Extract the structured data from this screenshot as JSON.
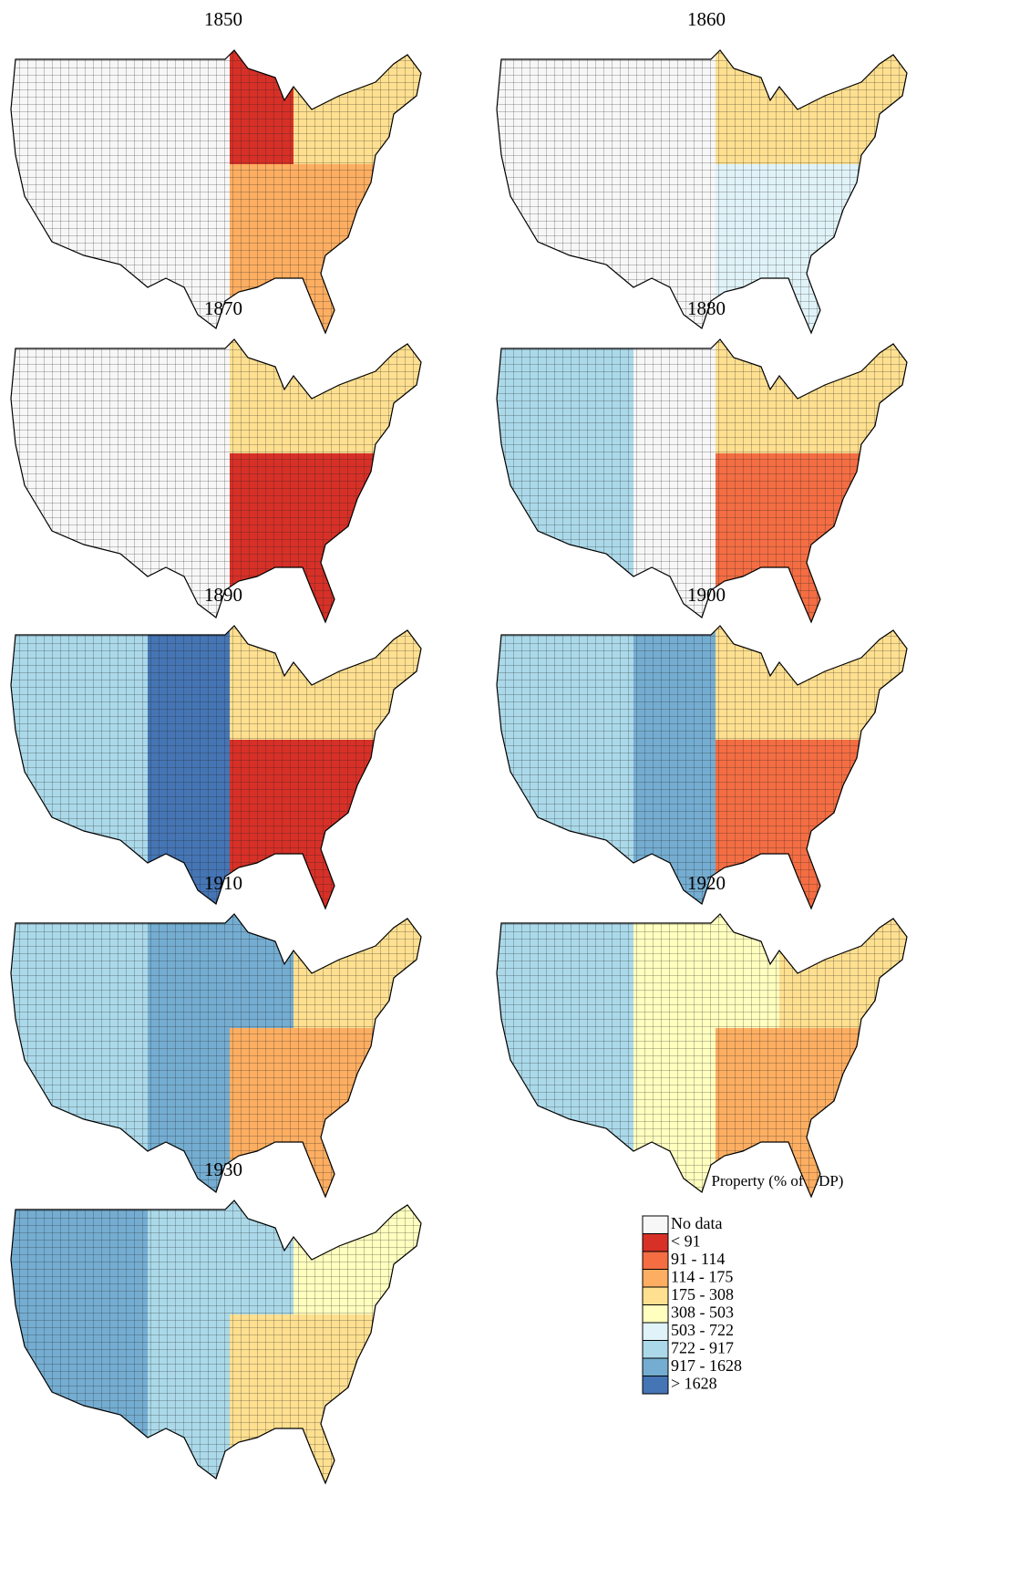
{
  "maps": [
    {
      "title": "1850"
    },
    {
      "title": "1860"
    },
    {
      "title": "1870"
    },
    {
      "title": "1880"
    },
    {
      "title": "1890"
    },
    {
      "title": "1900"
    },
    {
      "title": "1910"
    },
    {
      "title": "1920"
    },
    {
      "title": "1930"
    }
  ],
  "legend": {
    "title": "Property (% of GDP)",
    "items": [
      {
        "label": "No data",
        "color": "#f7f7f7"
      },
      {
        "label": "< 91",
        "color": "#d73027"
      },
      {
        "label": "91 - 114",
        "color": "#f46d43"
      },
      {
        "label": "114 - 175",
        "color": "#fdae61"
      },
      {
        "label": "175 - 308",
        "color": "#fee090"
      },
      {
        "label": "308 - 503",
        "color": "#ffffbf"
      },
      {
        "label": "503 - 722",
        "color": "#e0f3f8"
      },
      {
        "label": "722 - 917",
        "color": "#abd9e9"
      },
      {
        "label": "917 - 1628",
        "color": "#74add1"
      },
      {
        "label": "> 1628",
        "color": "#4575b4"
      }
    ]
  }
}
